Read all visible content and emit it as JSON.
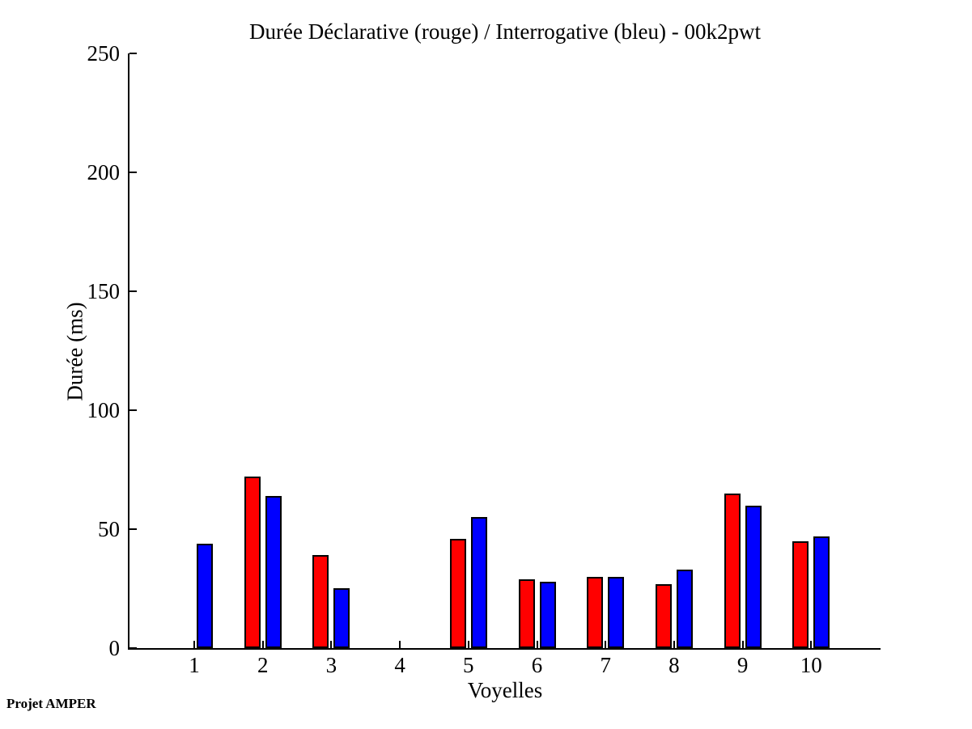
{
  "figure": {
    "background": "#ffffff",
    "footer": "Projet AMPER"
  },
  "chart_data": {
    "type": "bar",
    "title": "Durée Déclarative (rouge) / Interrogative (bleu) - 00k2pwt",
    "xlabel": "Voyelles",
    "ylabel": "Durée (ms)",
    "categories": [
      "1",
      "2",
      "3",
      "4",
      "5",
      "6",
      "7",
      "8",
      "9",
      "10"
    ],
    "series": [
      {
        "name": "Déclarative",
        "color": "#ff0000",
        "values": [
          0,
          72,
          39,
          0,
          46,
          29,
          30,
          27,
          65,
          45
        ]
      },
      {
        "name": "Interrogative",
        "color": "#0000ff",
        "values": [
          44,
          64,
          25,
          0,
          55,
          28,
          30,
          33,
          60,
          47
        ]
      }
    ],
    "ylim": [
      0,
      250
    ],
    "yticks": [
      0,
      50,
      100,
      150,
      200,
      250
    ],
    "grid": false,
    "legend_position": "none (series colors named in title)",
    "bar_edge_color": "#000000",
    "axis_color": "#000000",
    "annotations": [
      "Projet AMPER"
    ]
  }
}
